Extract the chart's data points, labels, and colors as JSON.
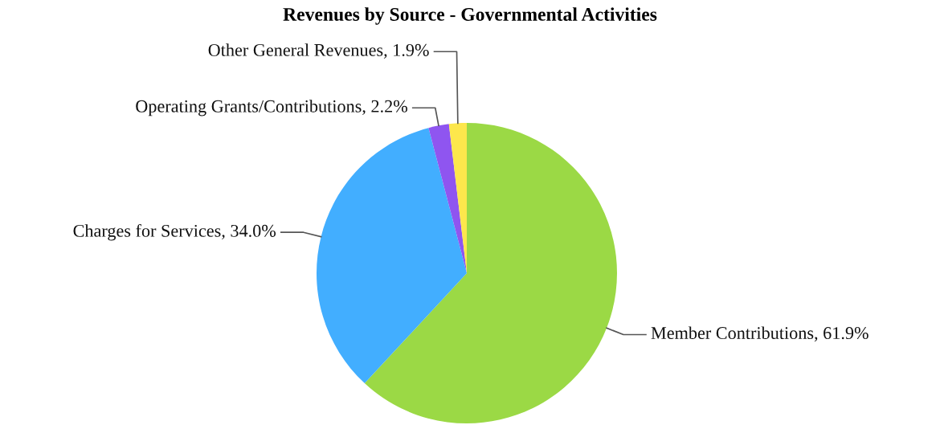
{
  "chart_data": {
    "type": "pie",
    "title": "Revenues by Source - Governmental Activities",
    "categories": [
      "Member Contributions",
      "Charges for Services",
      "Operating Grants/Contributions",
      "Other General Revenues"
    ],
    "values": [
      61.9,
      34.0,
      2.2,
      1.9
    ],
    "value_labels": [
      "61.9%",
      "34.0%",
      "2.2%",
      "1.9%"
    ],
    "colors": [
      "#9bd945",
      "#42aeff",
      "#8f55f0",
      "#fde74c"
    ],
    "legend": false
  }
}
